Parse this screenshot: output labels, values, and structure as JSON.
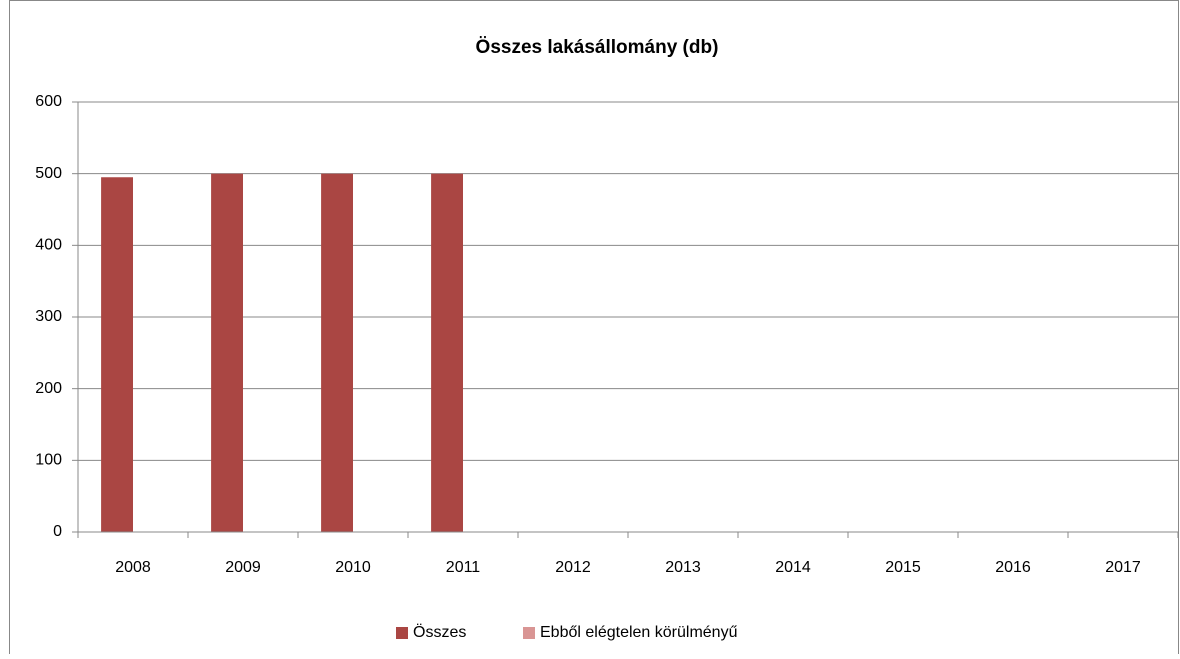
{
  "chart_data": {
    "type": "bar",
    "title": "Összes lakásállomány (db)",
    "categories": [
      "2008",
      "2009",
      "2010",
      "2011",
      "2012",
      "2013",
      "2014",
      "2015",
      "2016",
      "2017"
    ],
    "series": [
      {
        "name": "Összes",
        "color": "#aa4643",
        "values": [
          495,
          500,
          500,
          500,
          null,
          null,
          null,
          null,
          null,
          null
        ]
      },
      {
        "name": "Ebből elégtelen körülményű",
        "color": "#d99594",
        "values": [
          null,
          null,
          null,
          null,
          null,
          null,
          null,
          null,
          null,
          null
        ]
      }
    ],
    "ylim": [
      0,
      600
    ],
    "yticks": [
      0,
      100,
      200,
      300,
      400,
      500,
      600
    ],
    "grid": true,
    "legend": "bottom"
  }
}
